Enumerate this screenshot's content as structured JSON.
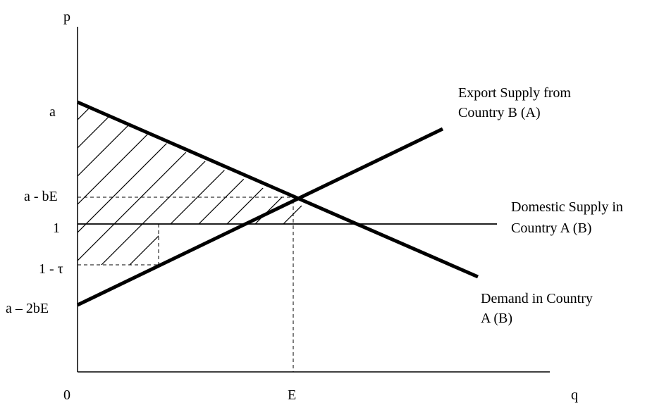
{
  "axes": {
    "y_label": "p",
    "x_label": "q",
    "origin_label": "0"
  },
  "y_ticks": {
    "a": "a",
    "a_bE": "a - bE",
    "one": "1",
    "one_tau": "1 - τ",
    "a_2bE": "a – 2bE"
  },
  "x_ticks": {
    "E": "E"
  },
  "curves": {
    "export_supply": {
      "line1": "Export Supply from",
      "line2": "Country B (A)"
    },
    "domestic_supply": {
      "line1": "Domestic Supply in",
      "line2": "Country A (B)"
    },
    "demand": {
      "line1": "Demand in Country",
      "line2": "A (B)"
    }
  },
  "colors": {
    "ink": "#000000",
    "background": "#ffffff"
  }
}
